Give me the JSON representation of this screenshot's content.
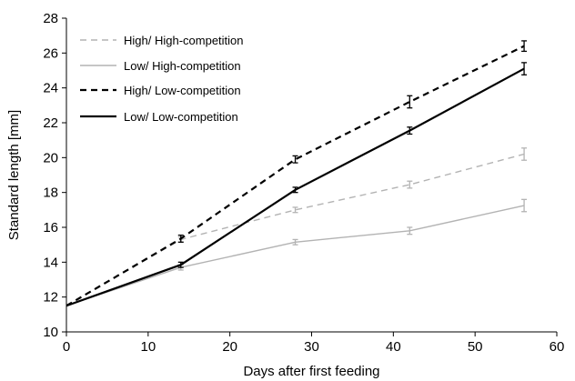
{
  "chart_data": {
    "type": "line",
    "xlabel": "Days after first feeding",
    "ylabel": "Standard length [mm]",
    "xlim": [
      0,
      60
    ],
    "ylim": [
      10,
      28
    ],
    "xticks": [
      0,
      10,
      20,
      30,
      40,
      50,
      60
    ],
    "yticks": [
      10,
      12,
      14,
      16,
      18,
      20,
      22,
      24,
      26,
      28
    ],
    "grid": false,
    "legend_position": "top-left",
    "x": [
      0,
      14,
      28,
      42,
      56
    ],
    "series": [
      {
        "name": "High/ High-competition",
        "values": [
          11.5,
          15.3,
          17.0,
          18.45,
          20.2
        ],
        "errors": [
          0.1,
          0.15,
          0.15,
          0.2,
          0.35
        ],
        "color": "#b3b3b3",
        "dash": "dashed"
      },
      {
        "name": "Low/ High-competition",
        "values": [
          11.5,
          13.7,
          15.15,
          15.8,
          17.25
        ],
        "errors": [
          0.1,
          0.15,
          0.15,
          0.2,
          0.35
        ],
        "color": "#b3b3b3",
        "dash": "solid"
      },
      {
        "name": "High/ Low-competition",
        "values": [
          11.5,
          15.35,
          19.9,
          23.2,
          26.4
        ],
        "errors": [
          0.1,
          0.2,
          0.2,
          0.35,
          0.3
        ],
        "color": "#000000",
        "dash": "dashed"
      },
      {
        "name": "Low/ Low-competition",
        "values": [
          11.5,
          13.85,
          18.15,
          21.55,
          25.1
        ],
        "errors": [
          0.1,
          0.15,
          0.15,
          0.2,
          0.35
        ],
        "color": "#000000",
        "dash": "solid"
      }
    ]
  }
}
